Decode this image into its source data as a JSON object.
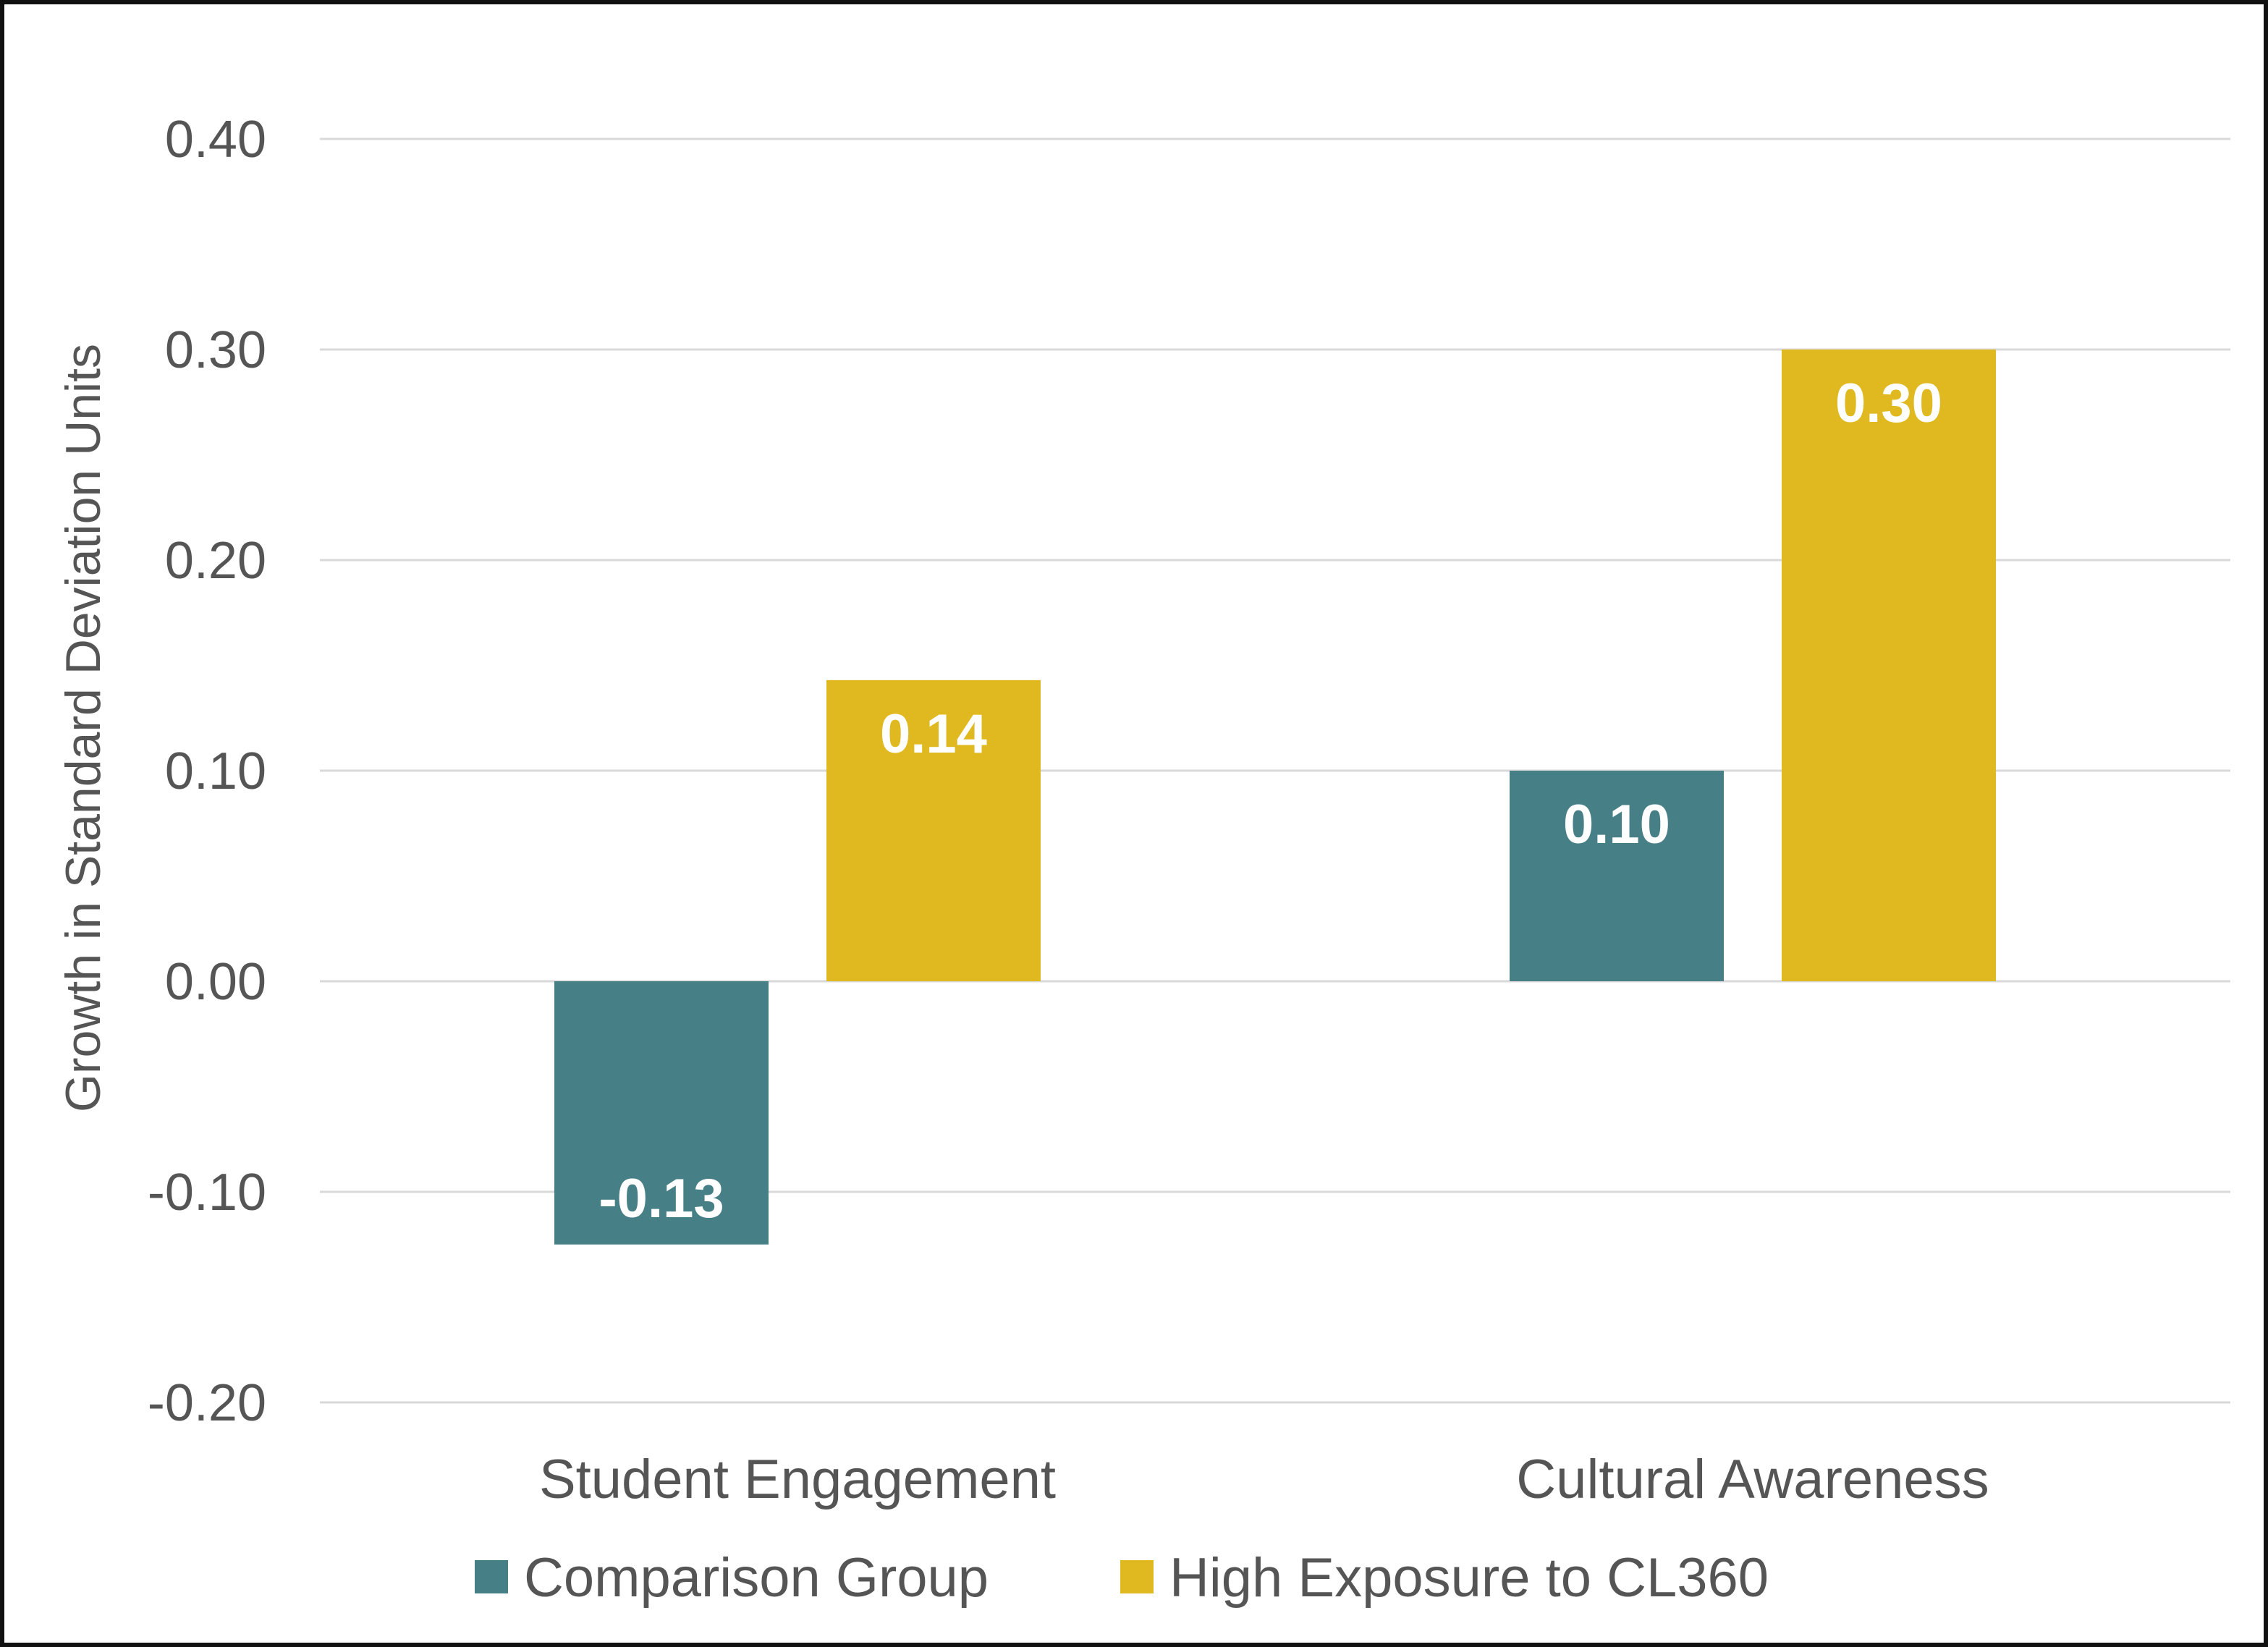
{
  "chart_data": {
    "type": "bar",
    "title": "",
    "xlabel": "",
    "ylabel": "Growth in Standard Deviation Units",
    "categories": [
      "Student Engagement",
      "Cultural Awareness"
    ],
    "series": [
      {
        "name": "Comparison Group",
        "values": [
          -0.125,
          0.1
        ],
        "labels": [
          "-0.13",
          "0.10"
        ],
        "color": "#467f86"
      },
      {
        "name": "High Exposure to CL360",
        "values": [
          0.143,
          0.3
        ],
        "labels": [
          "0.14",
          "0.30"
        ],
        "color": "#e0b81f"
      }
    ],
    "ylim": [
      -0.2,
      0.4
    ],
    "yticks": [
      -0.2,
      -0.1,
      0.0,
      0.1,
      0.2,
      0.3,
      0.4
    ],
    "ytick_labels": [
      "-0.20",
      "-0.10",
      "0.00",
      "0.10",
      "0.20",
      "0.30",
      "0.40"
    ],
    "grid": true,
    "legend_position": "bottom"
  }
}
